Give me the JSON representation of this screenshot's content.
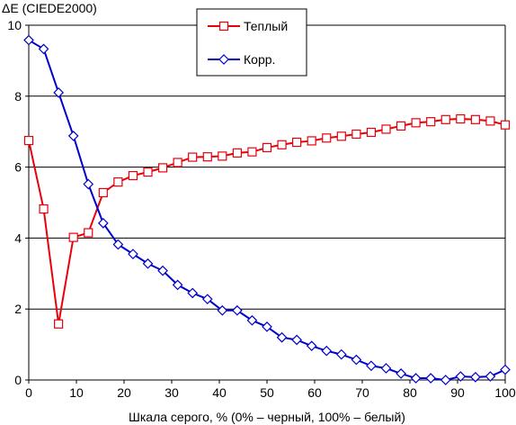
{
  "chart_data": {
    "type": "line",
    "title": "",
    "ylabel": "ΔE (CIEDE2000)",
    "xlabel": "Шкала серого, % (0% – черный, 100% – белый)",
    "xlim": [
      0,
      100
    ],
    "ylim": [
      0,
      10
    ],
    "x_ticks": [
      0,
      10,
      20,
      30,
      40,
      50,
      60,
      70,
      80,
      90,
      100
    ],
    "y_ticks": [
      0,
      2,
      4,
      6,
      8,
      10
    ],
    "grid": {
      "horizontal": true,
      "vertical": false
    },
    "legend_position": "top-center",
    "x": [
      0,
      3.125,
      6.25,
      9.375,
      12.5,
      15.625,
      18.75,
      21.875,
      25,
      28.125,
      31.25,
      34.375,
      37.5,
      40.625,
      43.75,
      46.875,
      50,
      53.125,
      56.25,
      59.375,
      62.5,
      65.625,
      68.75,
      71.875,
      75,
      78.125,
      81.25,
      84.375,
      87.5,
      90.625,
      93.75,
      96.875,
      100
    ],
    "series": [
      {
        "name": "Теплый",
        "color": "#e8000b",
        "marker": "square",
        "values": [
          6.75,
          4.82,
          1.58,
          4.02,
          4.15,
          5.28,
          5.58,
          5.76,
          5.86,
          5.98,
          6.13,
          6.28,
          6.29,
          6.31,
          6.4,
          6.43,
          6.55,
          6.63,
          6.7,
          6.74,
          6.82,
          6.87,
          6.93,
          6.98,
          7.07,
          7.16,
          7.25,
          7.28,
          7.34,
          7.36,
          7.34,
          7.3,
          7.19
        ]
      },
      {
        "name": "Корр.",
        "color": "#0000cc",
        "marker": "diamond",
        "values": [
          9.58,
          9.33,
          8.1,
          6.88,
          5.52,
          4.42,
          3.82,
          3.55,
          3.28,
          3.08,
          2.68,
          2.45,
          2.28,
          1.96,
          1.96,
          1.68,
          1.5,
          1.2,
          1.13,
          0.96,
          0.82,
          0.72,
          0.57,
          0.4,
          0.33,
          0.18,
          0.05,
          0.05,
          0.0,
          0.1,
          0.08,
          0.1,
          0.29
        ]
      }
    ]
  }
}
